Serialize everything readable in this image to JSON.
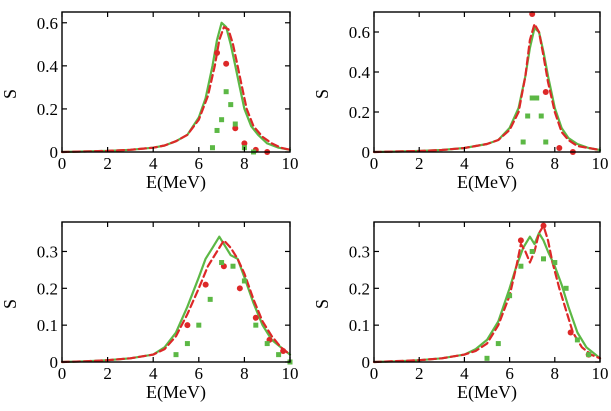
{
  "colors": {
    "solid": "#5cb845",
    "dashed": "#dd2828",
    "circles": "#dd2828",
    "squares": "#5cb845",
    "axes": "#000000"
  },
  "chart_data": [
    {
      "type": "line",
      "title": "",
      "xlabel": "E(MeV)",
      "ylabel": "S",
      "xlim": [
        0,
        10
      ],
      "ylim": [
        0,
        0.65
      ],
      "xticks": [
        "0",
        "2",
        "4",
        "6",
        "8",
        "10"
      ],
      "yticks": [
        {
          "v": 0,
          "label": "0"
        },
        {
          "v": 0.2,
          "label": "0.2"
        },
        {
          "v": 0.4,
          "label": "0.4"
        },
        {
          "v": 0.6,
          "label": "0.6"
        }
      ],
      "series": [
        {
          "style": "solid",
          "x": [
            0,
            2,
            3,
            4,
            4.5,
            5,
            5.5,
            6,
            6.3,
            6.6,
            6.8,
            7,
            7.2,
            7.4,
            7.6,
            7.8,
            8,
            8.3,
            8.6,
            9,
            9.5,
            10
          ],
          "y": [
            0,
            0.005,
            0.01,
            0.02,
            0.03,
            0.05,
            0.08,
            0.16,
            0.25,
            0.4,
            0.52,
            0.6,
            0.58,
            0.5,
            0.4,
            0.3,
            0.2,
            0.12,
            0.08,
            0.04,
            0.02,
            0.01
          ]
        },
        {
          "style": "dashed",
          "x": [
            0,
            2,
            3,
            4,
            4.5,
            5,
            5.5,
            6,
            6.4,
            6.7,
            6.9,
            7.1,
            7.3,
            7.5,
            7.7,
            7.9,
            8.1,
            8.4,
            8.8,
            9.2,
            9.6,
            10
          ],
          "y": [
            0,
            0.005,
            0.01,
            0.02,
            0.03,
            0.05,
            0.08,
            0.15,
            0.26,
            0.4,
            0.52,
            0.58,
            0.57,
            0.5,
            0.4,
            0.3,
            0.2,
            0.12,
            0.07,
            0.04,
            0.02,
            0.01
          ]
        },
        {
          "style": "circles",
          "x": [
            6.8,
            7.2,
            7.6,
            8,
            8.5,
            9
          ],
          "y": [
            0.46,
            0.41,
            0.11,
            0.04,
            0.01,
            0.0
          ]
        },
        {
          "style": "squares",
          "x": [
            6.6,
            6.8,
            7,
            7.2,
            7.4,
            7.6,
            8,
            8.4
          ],
          "y": [
            0.02,
            0.1,
            0.15,
            0.28,
            0.22,
            0.13,
            0.02,
            0.0
          ]
        }
      ]
    },
    {
      "type": "line",
      "title": "",
      "xlabel": "E(MeV)",
      "ylabel": "S",
      "xlim": [
        0,
        10
      ],
      "ylim": [
        0,
        0.7
      ],
      "xticks": [
        "0",
        "2",
        "4",
        "6",
        "8",
        "10"
      ],
      "yticks": [
        {
          "v": 0,
          "label": "0"
        },
        {
          "v": 0.2,
          "label": "0.2"
        },
        {
          "v": 0.4,
          "label": "0.4"
        },
        {
          "v": 0.6,
          "label": "0.6"
        }
      ],
      "series": [
        {
          "style": "solid",
          "x": [
            0,
            2,
            3,
            4,
            4.5,
            5,
            5.5,
            6,
            6.4,
            6.7,
            6.9,
            7.1,
            7.3,
            7.5,
            7.7,
            8,
            8.3,
            8.6,
            9,
            9.5,
            10
          ],
          "y": [
            0,
            0.005,
            0.01,
            0.02,
            0.03,
            0.04,
            0.06,
            0.12,
            0.22,
            0.38,
            0.52,
            0.62,
            0.6,
            0.5,
            0.38,
            0.22,
            0.12,
            0.07,
            0.04,
            0.02,
            0.01
          ]
        },
        {
          "style": "dashed",
          "x": [
            0,
            2,
            3,
            4,
            4.5,
            5,
            5.5,
            6,
            6.4,
            6.7,
            6.9,
            7.1,
            7.3,
            7.5,
            7.7,
            8,
            8.3,
            8.6,
            9,
            9.5,
            10
          ],
          "y": [
            0,
            0.005,
            0.01,
            0.02,
            0.03,
            0.04,
            0.06,
            0.11,
            0.2,
            0.38,
            0.56,
            0.64,
            0.6,
            0.48,
            0.35,
            0.2,
            0.1,
            0.06,
            0.03,
            0.02,
            0.01
          ]
        },
        {
          "style": "circles",
          "x": [
            7,
            7.6,
            8.2,
            8.8
          ],
          "y": [
            0.69,
            0.3,
            0.02,
            0.0
          ]
        },
        {
          "style": "squares",
          "x": [
            6.6,
            6.8,
            7,
            7.2,
            7.4,
            7.6
          ],
          "y": [
            0.05,
            0.18,
            0.27,
            0.27,
            0.18,
            0.05
          ]
        }
      ]
    },
    {
      "type": "line",
      "title": "",
      "xlabel": "E(MeV)",
      "ylabel": "S",
      "xlim": [
        0,
        10
      ],
      "ylim": [
        0,
        0.38
      ],
      "xticks": [
        "0",
        "2",
        "4",
        "6",
        "8",
        "10"
      ],
      "yticks": [
        {
          "v": 0,
          "label": "0"
        },
        {
          "v": 0.1,
          "label": "0.1"
        },
        {
          "v": 0.2,
          "label": "0.2"
        },
        {
          "v": 0.3,
          "label": "0.3"
        }
      ],
      "series": [
        {
          "style": "solid",
          "x": [
            0,
            1,
            2,
            3,
            4,
            4.5,
            5,
            5.5,
            6,
            6.3,
            6.6,
            6.9,
            7.1,
            7.4,
            7.7,
            8,
            8.4,
            8.8,
            9.2,
            9.6,
            10
          ],
          "y": [
            0,
            0.002,
            0.005,
            0.01,
            0.02,
            0.04,
            0.08,
            0.15,
            0.23,
            0.28,
            0.31,
            0.34,
            0.32,
            0.29,
            0.28,
            0.23,
            0.16,
            0.1,
            0.06,
            0.04,
            0.02
          ]
        },
        {
          "style": "dashed",
          "x": [
            0,
            1,
            2,
            3,
            4,
            4.5,
            5,
            5.5,
            6,
            6.4,
            6.8,
            7.1,
            7.4,
            7.7,
            8,
            8.4,
            8.8,
            9.2,
            9.6,
            10
          ],
          "y": [
            0,
            0.002,
            0.005,
            0.01,
            0.02,
            0.035,
            0.07,
            0.13,
            0.2,
            0.26,
            0.3,
            0.33,
            0.31,
            0.28,
            0.24,
            0.17,
            0.11,
            0.07,
            0.04,
            0.02
          ]
        },
        {
          "style": "circles",
          "x": [
            5.5,
            6.3,
            7.1,
            7.8,
            8.5,
            9.1,
            9.7
          ],
          "y": [
            0.1,
            0.21,
            0.26,
            0.2,
            0.12,
            0.06,
            0.03
          ]
        },
        {
          "style": "squares",
          "x": [
            5,
            5.5,
            6,
            6.5,
            7,
            7.5,
            8,
            8.5,
            9,
            9.5,
            10
          ],
          "y": [
            0.02,
            0.05,
            0.1,
            0.17,
            0.27,
            0.26,
            0.22,
            0.1,
            0.05,
            0.02,
            0.0
          ]
        }
      ]
    },
    {
      "type": "line",
      "title": "",
      "xlabel": "E(MeV)",
      "ylabel": "S",
      "xlim": [
        0,
        10
      ],
      "ylim": [
        0,
        0.38
      ],
      "xticks": [
        "0",
        "2",
        "4",
        "6",
        "8",
        "10"
      ],
      "yticks": [
        {
          "v": 0,
          "label": "0"
        },
        {
          "v": 0.1,
          "label": "0.1"
        },
        {
          "v": 0.2,
          "label": "0.2"
        },
        {
          "v": 0.3,
          "label": "0.3"
        }
      ],
      "series": [
        {
          "style": "solid",
          "x": [
            0,
            1,
            2,
            3,
            4,
            4.5,
            5,
            5.5,
            6,
            6.3,
            6.6,
            6.9,
            7.1,
            7.3,
            7.5,
            7.7,
            8,
            8.3,
            8.6,
            9,
            9.4,
            9.8,
            10
          ],
          "y": [
            0,
            0.002,
            0.005,
            0.01,
            0.02,
            0.035,
            0.06,
            0.11,
            0.2,
            0.26,
            0.31,
            0.34,
            0.32,
            0.35,
            0.33,
            0.3,
            0.26,
            0.21,
            0.15,
            0.08,
            0.04,
            0.02,
            0.01
          ]
        },
        {
          "style": "dashed",
          "x": [
            0,
            2,
            3,
            4,
            4.5,
            5,
            5.5,
            6,
            6.3,
            6.5,
            6.7,
            6.9,
            7.1,
            7.3,
            7.5,
            7.7,
            7.9,
            8.2,
            8.5,
            8.8,
            9.2,
            9.6,
            10
          ],
          "y": [
            0,
            0.005,
            0.01,
            0.02,
            0.03,
            0.05,
            0.1,
            0.18,
            0.26,
            0.32,
            0.3,
            0.27,
            0.3,
            0.35,
            0.37,
            0.33,
            0.27,
            0.2,
            0.14,
            0.08,
            0.04,
            0.02,
            0.01
          ]
        },
        {
          "style": "circles",
          "x": [
            6.5,
            7.5,
            8.7,
            9.5
          ],
          "y": [
            0.33,
            0.37,
            0.08,
            0.02
          ]
        },
        {
          "style": "squares",
          "x": [
            5,
            5.5,
            6,
            6.5,
            7,
            7.5,
            8,
            8.5,
            9,
            9.5
          ],
          "y": [
            0.01,
            0.05,
            0.18,
            0.26,
            0.3,
            0.28,
            0.27,
            0.2,
            0.06,
            0.02
          ]
        }
      ]
    }
  ]
}
